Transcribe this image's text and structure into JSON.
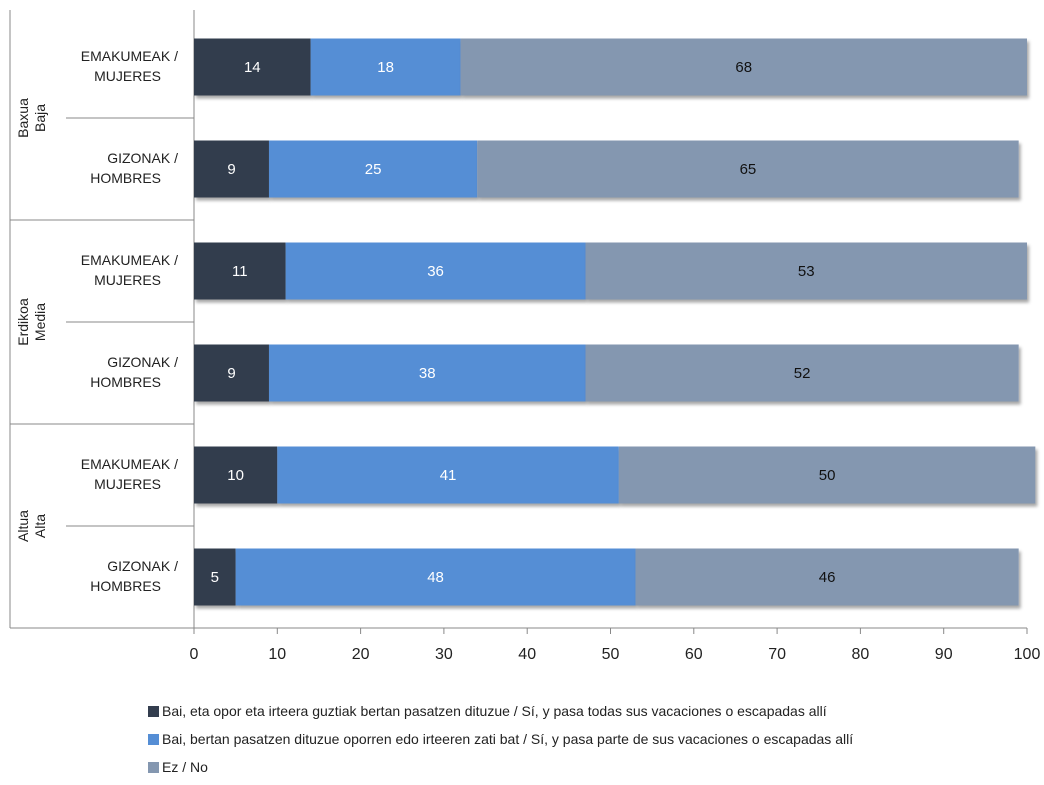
{
  "chart_data": {
    "type": "bar",
    "orientation": "horizontal",
    "stacked": true,
    "groups": [
      {
        "label_line1": "Baxua",
        "label_line2": "Baja",
        "rows": [
          {
            "label_line1": "EMAKUMEAK /",
            "label_line2": "MUJERES",
            "values": [
              14,
              18,
              68
            ]
          },
          {
            "label_line1": "GIZONAK /",
            "label_line2": "HOMBRES",
            "values": [
              9,
              25,
              65
            ]
          }
        ]
      },
      {
        "label_line1": "Erdikoa",
        "label_line2": "Media",
        "rows": [
          {
            "label_line1": "EMAKUMEAK /",
            "label_line2": "MUJERES",
            "values": [
              11,
              36,
              53
            ]
          },
          {
            "label_line1": "GIZONAK /",
            "label_line2": "HOMBRES",
            "values": [
              9,
              38,
              52
            ]
          }
        ]
      },
      {
        "label_line1": "Altua",
        "label_line2": "Alta",
        "rows": [
          {
            "label_line1": "EMAKUMEAK /",
            "label_line2": "MUJERES",
            "values": [
              10,
              41,
              50
            ]
          },
          {
            "label_line1": "GIZONAK /",
            "label_line2": "HOMBRES",
            "values": [
              5,
              48,
              46
            ]
          }
        ]
      }
    ],
    "series": [
      {
        "name": "Bai, eta opor eta irteera guztiak bertan pasatzen dituzue / Sí, y pasa todas sus vacaciones o escapadas allí",
        "color": "#333d4e",
        "label_color": "#ffffff"
      },
      {
        "name": "Bai, bertan pasatzen dituzue oporren edo irteeren zati bat / Sí, y pasa parte de sus vacaciones o escapadas allí",
        "color": "#558ed5",
        "label_color": "#ffffff"
      },
      {
        "name": "Ez / No",
        "color": "#8497b0",
        "label_color": "#111111"
      }
    ],
    "xlim": [
      0,
      100
    ],
    "xticks": [
      "0",
      "10",
      "20",
      "30",
      "40",
      "50",
      "60",
      "70",
      "80",
      "90",
      "100"
    ],
    "grid": false,
    "legend_position": "bottom"
  }
}
